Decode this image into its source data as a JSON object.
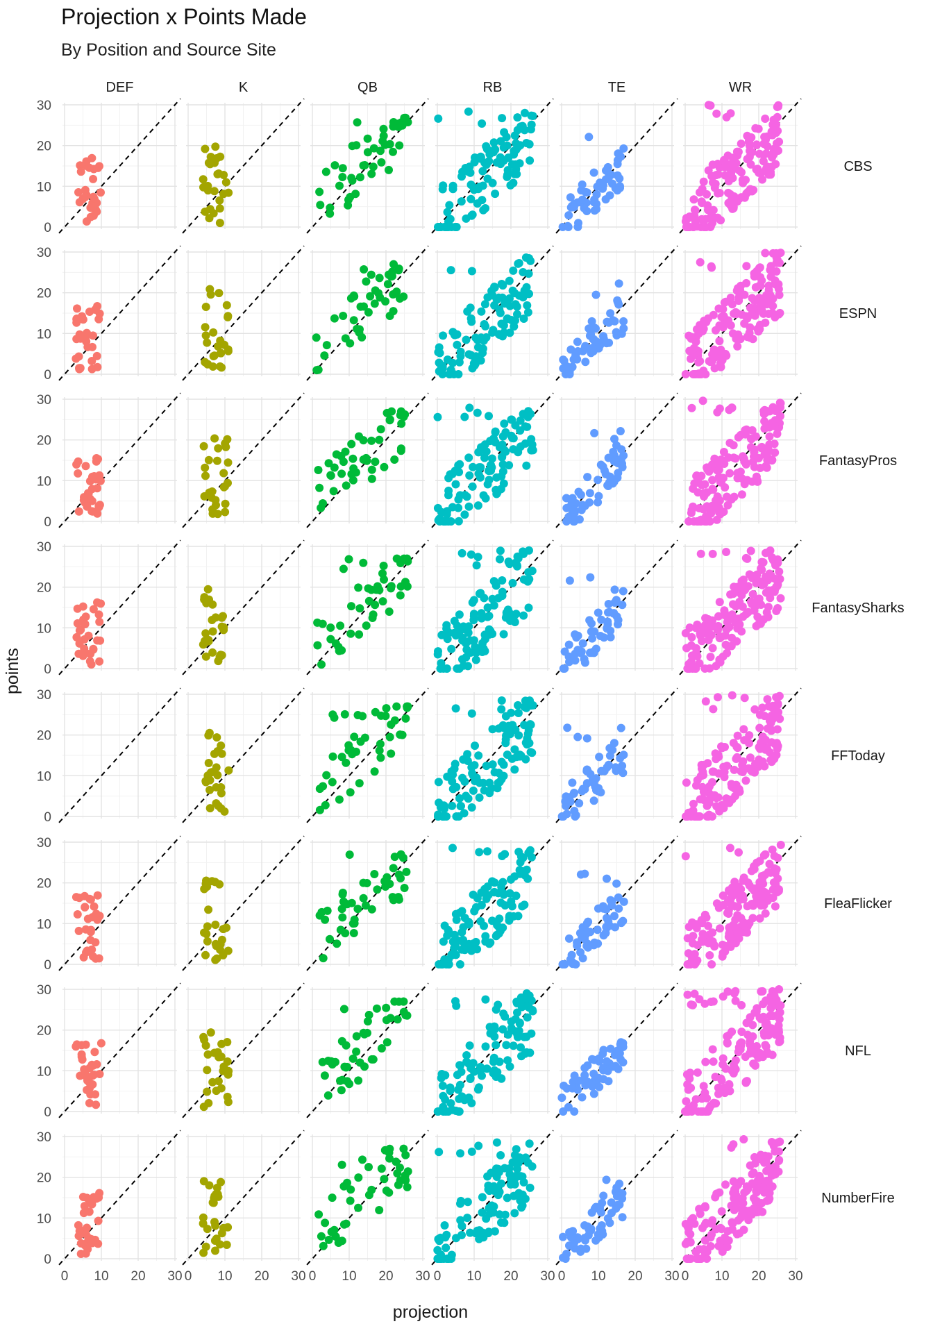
{
  "title": "Projection x Points Made",
  "subtitle": "By Position and Source Site",
  "chart_data": {
    "type": "scatter",
    "x_label": "projection",
    "y_label": "points",
    "xlim": [
      0,
      30
    ],
    "ylim": [
      0,
      30
    ],
    "x_ticks": [
      0,
      10,
      20,
      30
    ],
    "y_ticks": [
      0,
      10,
      20,
      30
    ],
    "grid": true,
    "reference_line": "y = x (dashed)",
    "columns": [
      "DEF",
      "K",
      "QB",
      "RB",
      "TE",
      "WR"
    ],
    "rows": [
      "CBS",
      "ESPN",
      "FantasyPros",
      "FantasySharks",
      "FFToday",
      "FleaFlicker",
      "NFL",
      "NumberFire"
    ],
    "colors": {
      "DEF": "#F8766D",
      "K": "#A3A500",
      "QB": "#00BA38",
      "RB": "#00BFC4",
      "TE": "#619CFF",
      "WR": "#F564E3"
    },
    "position_summary": {
      "DEF": {
        "x_range": [
          3,
          10
        ],
        "y_range": [
          1,
          17
        ],
        "n": 30
      },
      "K": {
        "x_range": [
          4,
          11
        ],
        "y_range": [
          1,
          21
        ],
        "n": 26
      },
      "QB": {
        "x_range": [
          1,
          26
        ],
        "y_range": [
          1,
          27
        ],
        "n": 45
      },
      "RB": {
        "x_range": [
          0,
          26
        ],
        "y_range": [
          0,
          29
        ],
        "n": 110
      },
      "TE": {
        "x_range": [
          0,
          17
        ],
        "y_range": [
          0,
          23
        ],
        "n": 55
      },
      "WR": {
        "x_range": [
          0,
          26
        ],
        "y_range": [
          0,
          30
        ],
        "n": 160
      }
    },
    "empty_panels": [
      [
        "FFToday",
        "DEF"
      ]
    ]
  }
}
